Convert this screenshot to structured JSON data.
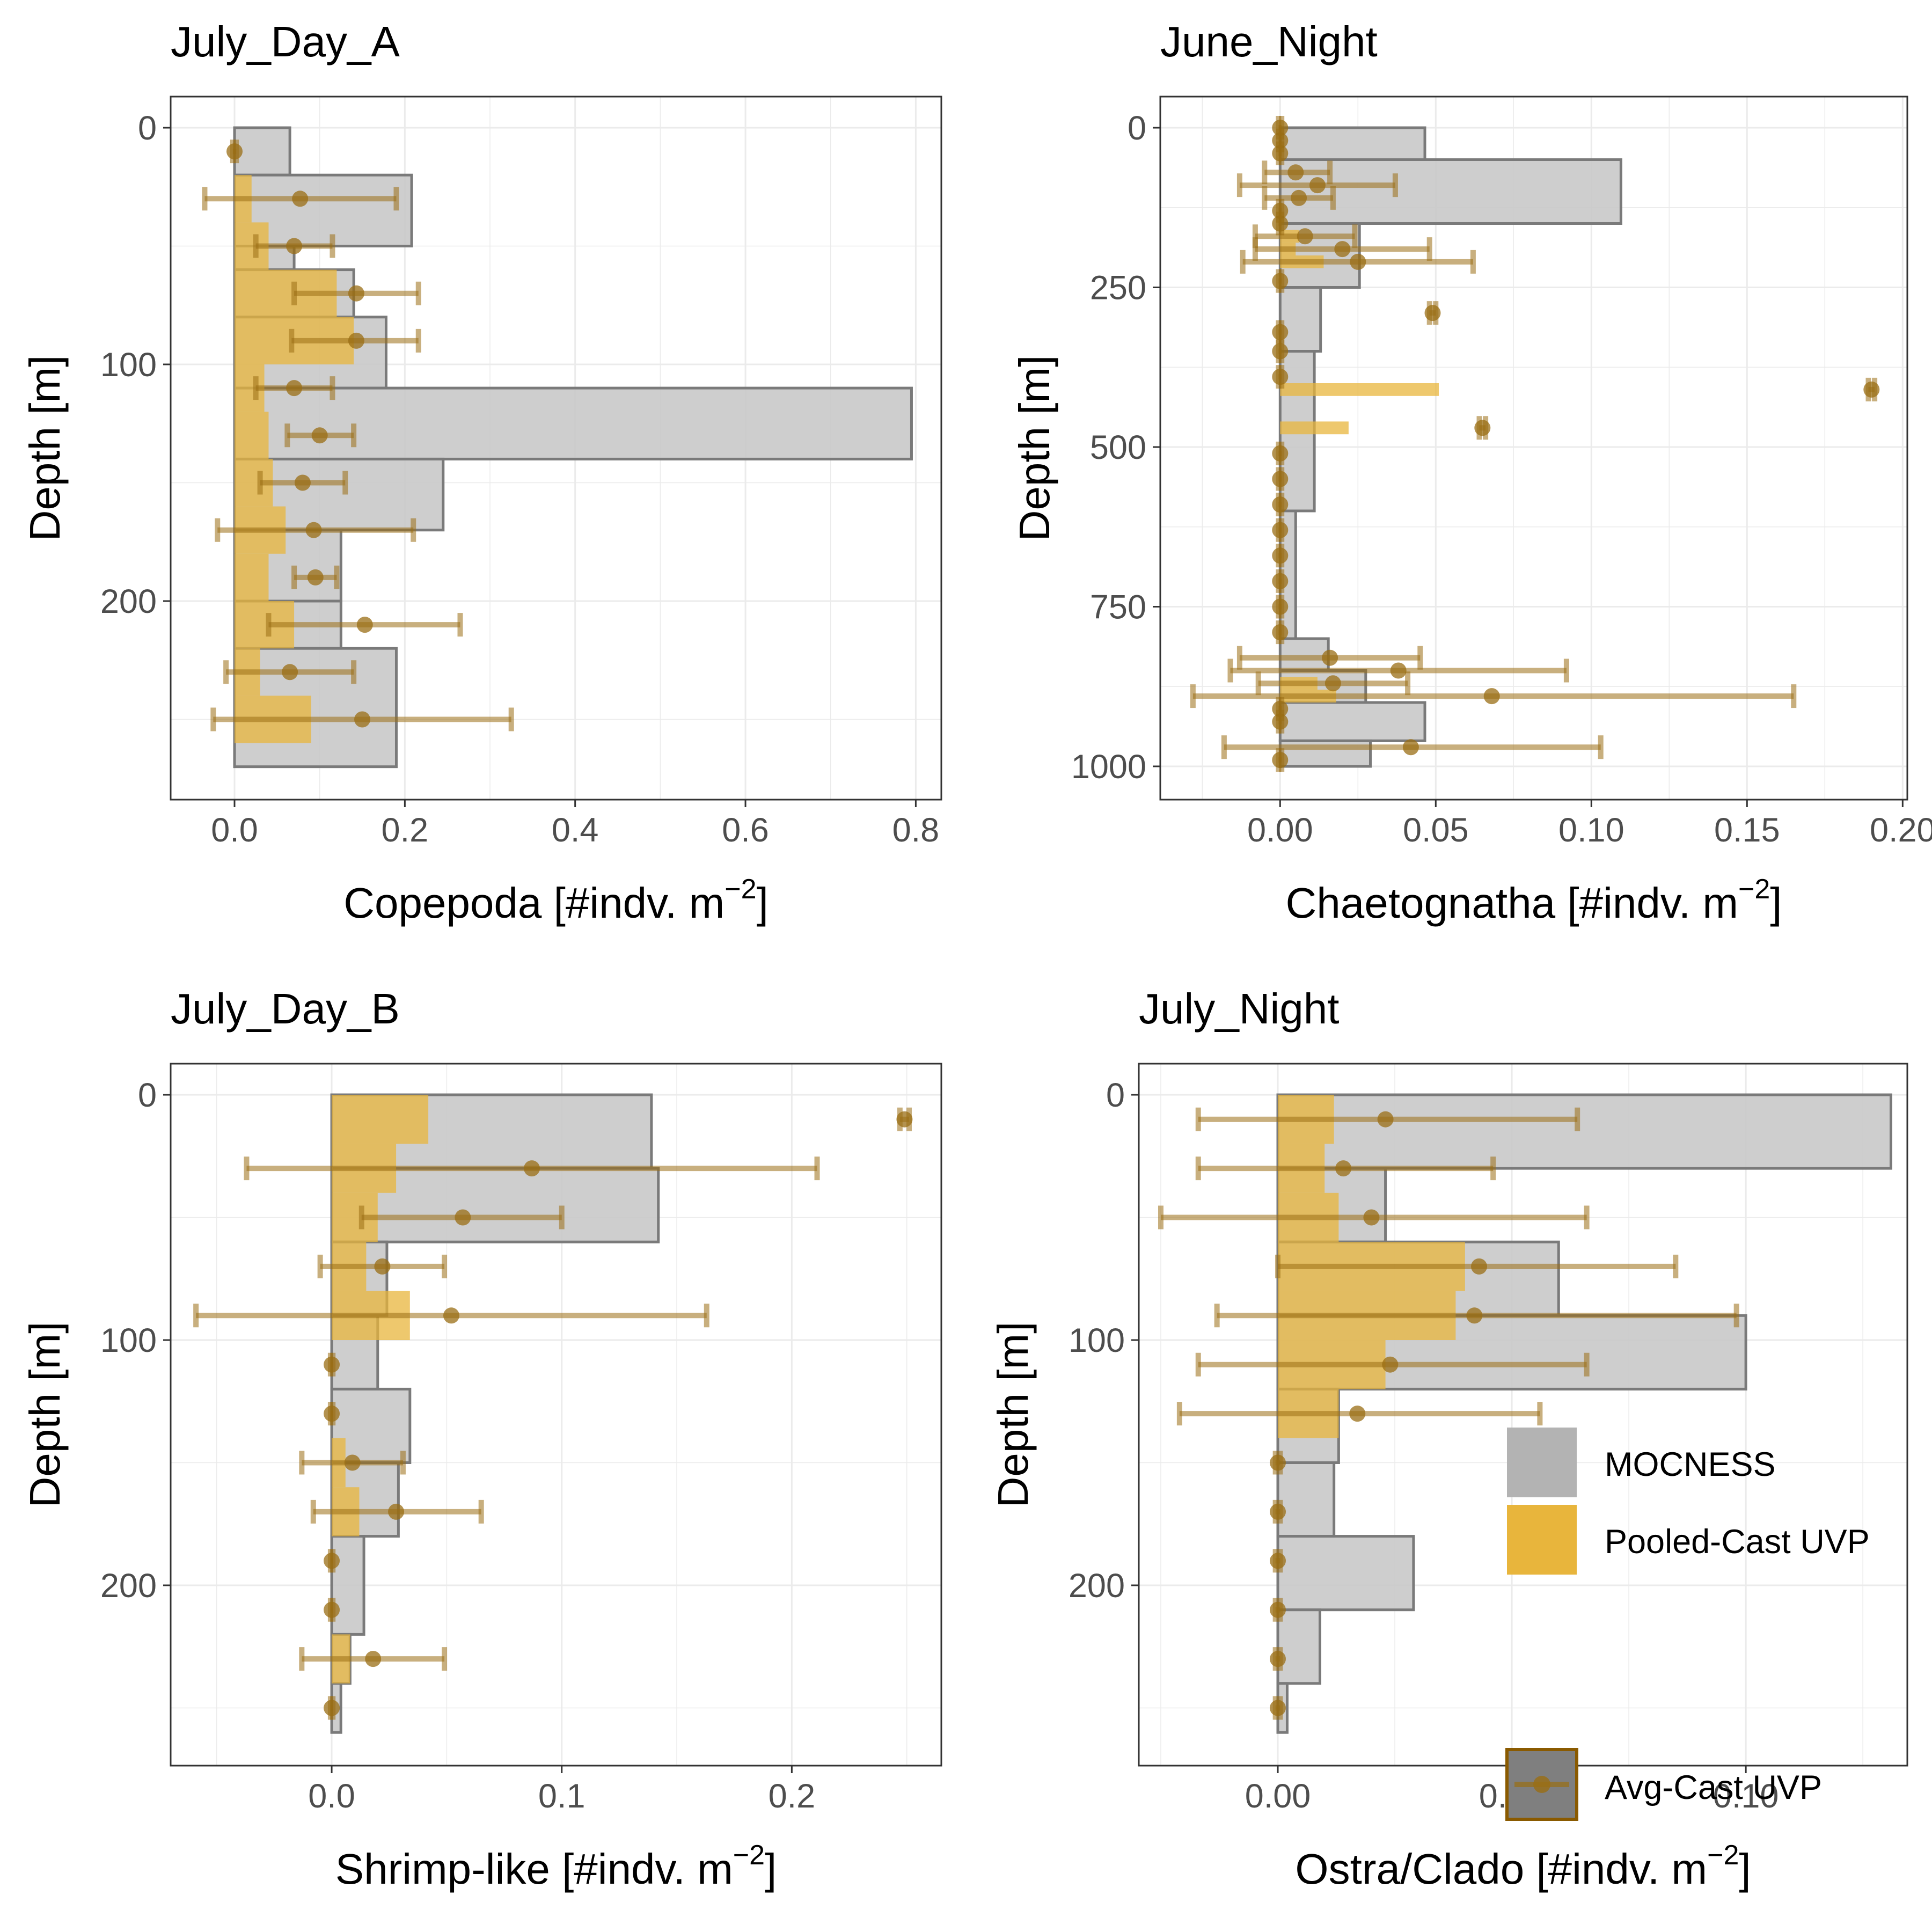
{
  "colors": {
    "mocness": "#c9c9c9",
    "mocness_stroke": "#7a7a7a",
    "pooled_uvp": "#e8b53c",
    "avg_uvp": "#9a6e14",
    "grid": "#ebebeb",
    "panel_border": "#333333"
  },
  "legend": {
    "mocness": "MOCNESS",
    "pooled": "Pooled-Cast UVP",
    "avg": "Avg-Cast UVP"
  },
  "chart_data": [
    {
      "type": "bar",
      "title": "July_Day_A",
      "ylabel": "Depth [m]",
      "xlabel": "Copepoda [#indv. m",
      "xlabel_exp": "−2",
      "xlabel_end": "]",
      "xlim": [
        -0.075,
        0.83
      ],
      "ylim": [
        0,
        285
      ],
      "x_ticks": [
        0,
        0.2,
        0.4,
        0.6,
        0.8
      ],
      "x_tick_labels": [
        "0.0",
        "0.2",
        "0.4",
        "0.6",
        "0.8"
      ],
      "y_ticks": [
        0,
        100,
        200
      ],
      "y_tick_labels": [
        "0",
        "100",
        "200"
      ],
      "mocness": [
        {
          "top": 0,
          "bottom": 20,
          "value": 0.065
        },
        {
          "top": 20,
          "bottom": 50,
          "value": 0.208
        },
        {
          "top": 50,
          "bottom": 60,
          "value": 0.07
        },
        {
          "top": 60,
          "bottom": 80,
          "value": 0.14
        },
        {
          "top": 80,
          "bottom": 110,
          "value": 0.178
        },
        {
          "top": 110,
          "bottom": 140,
          "value": 0.795
        },
        {
          "top": 140,
          "bottom": 170,
          "value": 0.245
        },
        {
          "top": 170,
          "bottom": 200,
          "value": 0.125
        },
        {
          "top": 200,
          "bottom": 220,
          "value": 0.125
        },
        {
          "top": 220,
          "bottom": 270,
          "value": 0.19
        }
      ],
      "pooled": [
        {
          "top": 20,
          "bottom": 40,
          "value": 0.02
        },
        {
          "top": 40,
          "bottom": 60,
          "value": 0.04
        },
        {
          "top": 60,
          "bottom": 80,
          "value": 0.12
        },
        {
          "top": 80,
          "bottom": 100,
          "value": 0.14
        },
        {
          "top": 100,
          "bottom": 120,
          "value": 0.035
        },
        {
          "top": 120,
          "bottom": 140,
          "value": 0.04
        },
        {
          "top": 140,
          "bottom": 160,
          "value": 0.045
        },
        {
          "top": 160,
          "bottom": 180,
          "value": 0.06
        },
        {
          "top": 180,
          "bottom": 200,
          "value": 0.04
        },
        {
          "top": 200,
          "bottom": 220,
          "value": 0.07
        },
        {
          "top": 220,
          "bottom": 240,
          "value": 0.03
        },
        {
          "top": 240,
          "bottom": 260,
          "value": 0.09
        }
      ],
      "avg": [
        {
          "depth": 10,
          "mean": 0.0,
          "lo": -0.002,
          "hi": 0.002
        },
        {
          "depth": 30,
          "mean": 0.077,
          "lo": -0.035,
          "hi": 0.19
        },
        {
          "depth": 50,
          "mean": 0.07,
          "lo": 0.025,
          "hi": 0.115
        },
        {
          "depth": 70,
          "mean": 0.143,
          "lo": 0.07,
          "hi": 0.216
        },
        {
          "depth": 90,
          "mean": 0.143,
          "lo": 0.067,
          "hi": 0.216
        },
        {
          "depth": 110,
          "mean": 0.07,
          "lo": 0.025,
          "hi": 0.115
        },
        {
          "depth": 130,
          "mean": 0.1,
          "lo": 0.062,
          "hi": 0.14
        },
        {
          "depth": 150,
          "mean": 0.08,
          "lo": 0.03,
          "hi": 0.13
        },
        {
          "depth": 170,
          "mean": 0.093,
          "lo": -0.02,
          "hi": 0.21
        },
        {
          "depth": 190,
          "mean": 0.095,
          "lo": 0.07,
          "hi": 0.12
        },
        {
          "depth": 210,
          "mean": 0.153,
          "lo": 0.04,
          "hi": 0.265
        },
        {
          "depth": 230,
          "mean": 0.065,
          "lo": -0.01,
          "hi": 0.14
        },
        {
          "depth": 250,
          "mean": 0.15,
          "lo": -0.025,
          "hi": 0.325
        }
      ]
    },
    {
      "type": "bar",
      "title": "June_Night",
      "ylabel": "Depth [m]",
      "xlabel": "Chaetognatha [#indv. m",
      "xlabel_exp": "−2",
      "xlabel_end": "]",
      "xlim": [
        -0.0385,
        0.2015
      ],
      "ylim": [
        0,
        1045
      ],
      "x_ticks": [
        0,
        0.05,
        0.1,
        0.15,
        0.2
      ],
      "x_tick_labels": [
        "0.00",
        "0.05",
        "0.10",
        "0.15",
        "0.20"
      ],
      "y_ticks": [
        0,
        250,
        500,
        750,
        1000
      ],
      "y_tick_labels": [
        "0",
        "250",
        "500",
        "750",
        "1000"
      ],
      "mocness": [
        {
          "top": 0,
          "bottom": 50,
          "value": 0.0465
        },
        {
          "top": 50,
          "bottom": 150,
          "value": 0.1095
        },
        {
          "top": 150,
          "bottom": 250,
          "value": 0.0255
        },
        {
          "top": 250,
          "bottom": 350,
          "value": 0.013
        },
        {
          "top": 350,
          "bottom": 600,
          "value": 0.011
        },
        {
          "top": 600,
          "bottom": 800,
          "value": 0.005
        },
        {
          "top": 800,
          "bottom": 850,
          "value": 0.0155
        },
        {
          "top": 850,
          "bottom": 900,
          "value": 0.0275
        },
        {
          "top": 900,
          "bottom": 960,
          "value": 0.0465
        },
        {
          "top": 960,
          "bottom": 1000,
          "value": 0.029
        }
      ],
      "pooled": [
        {
          "top": 160,
          "bottom": 180,
          "value": 0.006
        },
        {
          "top": 180,
          "bottom": 200,
          "value": 0.005
        },
        {
          "top": 200,
          "bottom": 220,
          "value": 0.014
        },
        {
          "top": 400,
          "bottom": 420,
          "value": 0.051
        },
        {
          "top": 460,
          "bottom": 480,
          "value": 0.022
        },
        {
          "top": 860,
          "bottom": 880,
          "value": 0.012
        },
        {
          "top": 880,
          "bottom": 900,
          "value": 0.018
        }
      ],
      "avg": [
        {
          "depth": 0,
          "mean": 0.0,
          "lo": -0.0005,
          "hi": 0.0005
        },
        {
          "depth": 20,
          "mean": 0.0,
          "lo": -0.0005,
          "hi": 0.0005
        },
        {
          "depth": 40,
          "mean": 0.0,
          "lo": -0.0005,
          "hi": 0.0005
        },
        {
          "depth": 70,
          "mean": 0.005,
          "lo": -0.005,
          "hi": 0.016
        },
        {
          "depth": 90,
          "mean": 0.012,
          "lo": -0.013,
          "hi": 0.037
        },
        {
          "depth": 110,
          "mean": 0.006,
          "lo": -0.005,
          "hi": 0.017
        },
        {
          "depth": 130,
          "mean": 0.0,
          "lo": -0.0005,
          "hi": 0.0005
        },
        {
          "depth": 150,
          "mean": 0.0,
          "lo": -0.0005,
          "hi": 0.0005
        },
        {
          "depth": 170,
          "mean": 0.008,
          "lo": -0.008,
          "hi": 0.024
        },
        {
          "depth": 190,
          "mean": 0.02,
          "lo": -0.008,
          "hi": 0.048
        },
        {
          "depth": 210,
          "mean": 0.025,
          "lo": -0.012,
          "hi": 0.062
        },
        {
          "depth": 240,
          "mean": 0.0,
          "lo": -0.0005,
          "hi": 0.0005
        },
        {
          "depth": 290,
          "mean": 0.049,
          "lo": 0.048,
          "hi": 0.05
        },
        {
          "depth": 320,
          "mean": 0.0,
          "lo": -0.0005,
          "hi": 0.0005
        },
        {
          "depth": 350,
          "mean": 0.0,
          "lo": -0.0005,
          "hi": 0.0005
        },
        {
          "depth": 390,
          "mean": 0.0,
          "lo": -0.0005,
          "hi": 0.0005
        },
        {
          "depth": 410,
          "mean": 0.19,
          "lo": 0.189,
          "hi": 0.191
        },
        {
          "depth": 470,
          "mean": 0.065,
          "lo": 0.064,
          "hi": 0.066
        },
        {
          "depth": 510,
          "mean": 0.0,
          "lo": -0.0005,
          "hi": 0.0005
        },
        {
          "depth": 550,
          "mean": 0.0,
          "lo": -0.0005,
          "hi": 0.0005
        },
        {
          "depth": 590,
          "mean": 0.0,
          "lo": -0.0005,
          "hi": 0.0005
        },
        {
          "depth": 630,
          "mean": 0.0,
          "lo": -0.0005,
          "hi": 0.0005
        },
        {
          "depth": 670,
          "mean": 0.0,
          "lo": -0.0005,
          "hi": 0.0005
        },
        {
          "depth": 710,
          "mean": 0.0,
          "lo": -0.0005,
          "hi": 0.0005
        },
        {
          "depth": 750,
          "mean": 0.0,
          "lo": -0.0005,
          "hi": 0.0005
        },
        {
          "depth": 790,
          "mean": 0.0,
          "lo": -0.0005,
          "hi": 0.0005
        },
        {
          "depth": 830,
          "mean": 0.016,
          "lo": -0.013,
          "hi": 0.045
        },
        {
          "depth": 850,
          "mean": 0.038,
          "lo": -0.016,
          "hi": 0.092
        },
        {
          "depth": 870,
          "mean": 0.017,
          "lo": -0.007,
          "hi": 0.041
        },
        {
          "depth": 890,
          "mean": 0.068,
          "lo": -0.028,
          "hi": 0.165
        },
        {
          "depth": 910,
          "mean": 0.0,
          "lo": -0.0005,
          "hi": 0.0005
        },
        {
          "depth": 930,
          "mean": 0.0,
          "lo": -0.0005,
          "hi": 0.0005
        },
        {
          "depth": 970,
          "mean": 0.042,
          "lo": -0.018,
          "hi": 0.103
        },
        {
          "depth": 990,
          "mean": 0.0,
          "lo": -0.0005,
          "hi": 0.0005
        }
      ]
    },
    {
      "type": "bar",
      "title": "July_Day_B",
      "ylabel": "Depth [m]",
      "xlabel": "Shrimp-like [#indv. m",
      "xlabel_exp": "−2",
      "xlabel_end": "]",
      "xlim": [
        -0.07,
        0.265
      ],
      "ylim": [
        0,
        275
      ],
      "x_ticks": [
        0,
        0.1,
        0.2
      ],
      "x_tick_labels": [
        "0.0",
        "0.1",
        "0.2"
      ],
      "y_ticks": [
        0,
        100,
        200
      ],
      "y_tick_labels": [
        "0",
        "100",
        "200"
      ],
      "mocness": [
        {
          "top": 0,
          "bottom": 30,
          "value": 0.139
        },
        {
          "top": 30,
          "bottom": 60,
          "value": 0.142
        },
        {
          "top": 60,
          "bottom": 90,
          "value": 0.024
        },
        {
          "top": 90,
          "bottom": 120,
          "value": 0.02
        },
        {
          "top": 120,
          "bottom": 150,
          "value": 0.034
        },
        {
          "top": 150,
          "bottom": 180,
          "value": 0.029
        },
        {
          "top": 180,
          "bottom": 220,
          "value": 0.014
        },
        {
          "top": 220,
          "bottom": 240,
          "value": 0.008
        },
        {
          "top": 240,
          "bottom": 260,
          "value": 0.004
        }
      ],
      "pooled": [
        {
          "top": 0,
          "bottom": 20,
          "value": 0.042
        },
        {
          "top": 20,
          "bottom": 40,
          "value": 0.028
        },
        {
          "top": 40,
          "bottom": 60,
          "value": 0.02
        },
        {
          "top": 60,
          "bottom": 80,
          "value": 0.015
        },
        {
          "top": 80,
          "bottom": 100,
          "value": 0.034
        },
        {
          "top": 140,
          "bottom": 160,
          "value": 0.006
        },
        {
          "top": 160,
          "bottom": 180,
          "value": 0.012
        },
        {
          "top": 220,
          "bottom": 240,
          "value": 0.008
        }
      ],
      "avg": [
        {
          "depth": 10,
          "mean": 0.249,
          "lo": 0.247,
          "hi": 0.251
        },
        {
          "depth": 30,
          "mean": 0.087,
          "lo": -0.037,
          "hi": 0.211
        },
        {
          "depth": 50,
          "mean": 0.057,
          "lo": 0.013,
          "hi": 0.1
        },
        {
          "depth": 70,
          "mean": 0.022,
          "lo": -0.005,
          "hi": 0.049
        },
        {
          "depth": 90,
          "mean": 0.052,
          "lo": -0.059,
          "hi": 0.163
        },
        {
          "depth": 110,
          "mean": 0.0,
          "lo": -0.0005,
          "hi": 0.0005
        },
        {
          "depth": 130,
          "mean": 0.0,
          "lo": -0.0005,
          "hi": 0.0005
        },
        {
          "depth": 150,
          "mean": 0.009,
          "lo": -0.013,
          "hi": 0.031
        },
        {
          "depth": 170,
          "mean": 0.028,
          "lo": -0.008,
          "hi": 0.065
        },
        {
          "depth": 190,
          "mean": 0.0,
          "lo": -0.0005,
          "hi": 0.0005
        },
        {
          "depth": 210,
          "mean": 0.0,
          "lo": -0.0005,
          "hi": 0.0005
        },
        {
          "depth": 230,
          "mean": 0.018,
          "lo": -0.013,
          "hi": 0.049
        },
        {
          "depth": 250,
          "mean": 0.0,
          "lo": -0.0005,
          "hi": 0.0005
        }
      ]
    },
    {
      "type": "bar",
      "title": "July_Night",
      "ylabel": "Depth [m]",
      "xlabel": "Ostra/Clado [#indv. m",
      "xlabel_exp": "−2",
      "xlabel_end": "]",
      "xlim": [
        -0.0297,
        0.1345
      ],
      "ylim": [
        0,
        275
      ],
      "x_ticks": [
        0,
        0.05,
        0.1
      ],
      "x_tick_labels": [
        "0.00",
        "0.05",
        "0.10"
      ],
      "y_ticks": [
        0,
        100,
        200
      ],
      "y_tick_labels": [
        "0",
        "100",
        "200"
      ],
      "mocness": [
        {
          "top": 0,
          "bottom": 30,
          "value": 0.131
        },
        {
          "top": 30,
          "bottom": 60,
          "value": 0.023
        },
        {
          "top": 60,
          "bottom": 90,
          "value": 0.06
        },
        {
          "top": 90,
          "bottom": 120,
          "value": 0.1
        },
        {
          "top": 120,
          "bottom": 150,
          "value": 0.013
        },
        {
          "top": 150,
          "bottom": 180,
          "value": 0.012
        },
        {
          "top": 180,
          "bottom": 210,
          "value": 0.029
        },
        {
          "top": 210,
          "bottom": 240,
          "value": 0.009
        },
        {
          "top": 240,
          "bottom": 260,
          "value": 0.002
        }
      ],
      "pooled": [
        {
          "top": 0,
          "bottom": 20,
          "value": 0.012
        },
        {
          "top": 20,
          "bottom": 40,
          "value": 0.01
        },
        {
          "top": 40,
          "bottom": 60,
          "value": 0.013
        },
        {
          "top": 60,
          "bottom": 80,
          "value": 0.04
        },
        {
          "top": 80,
          "bottom": 100,
          "value": 0.038
        },
        {
          "top": 100,
          "bottom": 120,
          "value": 0.023
        },
        {
          "top": 120,
          "bottom": 140,
          "value": 0.013
        }
      ],
      "avg": [
        {
          "depth": 10,
          "mean": 0.023,
          "lo": -0.017,
          "hi": 0.064
        },
        {
          "depth": 30,
          "mean": 0.014,
          "lo": -0.017,
          "hi": 0.046
        },
        {
          "depth": 50,
          "mean": 0.02,
          "lo": -0.025,
          "hi": 0.066
        },
        {
          "depth": 70,
          "mean": 0.043,
          "lo": 0.0,
          "hi": 0.085
        },
        {
          "depth": 90,
          "mean": 0.042,
          "lo": -0.013,
          "hi": 0.098
        },
        {
          "depth": 110,
          "mean": 0.024,
          "lo": -0.017,
          "hi": 0.066
        },
        {
          "depth": 130,
          "mean": 0.017,
          "lo": -0.021,
          "hi": 0.056
        },
        {
          "depth": 150,
          "mean": 0.0,
          "lo": -0.0005,
          "hi": 0.0005
        },
        {
          "depth": 170,
          "mean": 0.0,
          "lo": -0.0005,
          "hi": 0.0005
        },
        {
          "depth": 190,
          "mean": 0.0,
          "lo": -0.0005,
          "hi": 0.0005
        },
        {
          "depth": 210,
          "mean": 0.0,
          "lo": -0.0005,
          "hi": 0.0005
        },
        {
          "depth": 230,
          "mean": 0.0,
          "lo": -0.0005,
          "hi": 0.0005
        },
        {
          "depth": 250,
          "mean": 0.0,
          "lo": -0.0005,
          "hi": 0.0005
        }
      ]
    }
  ]
}
